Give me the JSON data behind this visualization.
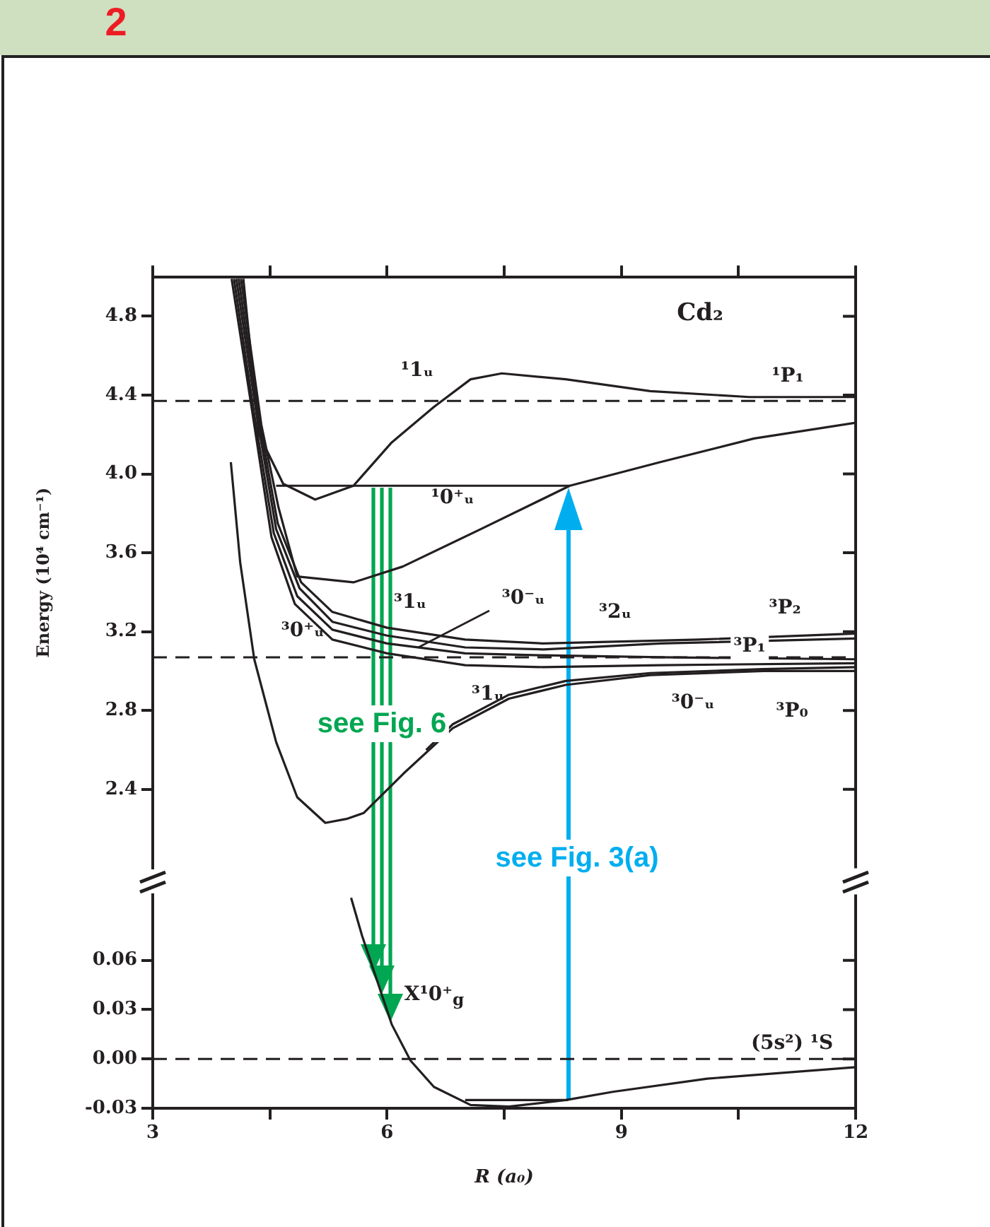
{
  "chart_data": [
    {
      "type": "line",
      "ylabel": "Energy (10⁴ cm⁻¹)",
      "xlim": [
        3,
        12
      ],
      "xticks": [
        {
          "value": 3,
          "label": null
        },
        {
          "value": 4.5,
          "label": null
        },
        {
          "value": 6,
          "label": null
        },
        {
          "value": 7.5,
          "label": null
        },
        {
          "value": 9,
          "label": null
        },
        {
          "value": 10.5,
          "label": null
        },
        {
          "value": 12,
          "label": null
        }
      ],
      "ylim": [
        2.0,
        5.0
      ],
      "yticks": [
        2.4,
        2.8,
        3.2,
        3.6,
        {
          "value": 4,
          "label": "4.0"
        },
        4.4,
        4.8
      ],
      "tick_labels": "y",
      "grid": false,
      "legend": false,
      "marker": "none",
      "line_style": "solid",
      "series": [
        {
          "color": "#231f20",
          "x": [
            4.16,
            4.36,
            4.67,
            5.08,
            5.57,
            6.06,
            6.6,
            7.07,
            7.47,
            8.29,
            9.37,
            10.64,
            12
          ],
          "values": [
            4.99,
            4.2,
            3.95,
            3.87,
            3.94,
            4.16,
            4.34,
            4.48,
            4.51,
            4.48,
            4.42,
            4.39,
            4.39
          ]
        },
        {
          "color": "#231f20",
          "x": [
            4.13,
            4.39,
            4.61,
            4.85,
            5.57,
            6.2,
            7.2,
            8.34,
            9.5,
            10.7,
            12
          ],
          "values": [
            4.99,
            4.25,
            3.83,
            3.48,
            3.45,
            3.53,
            3.72,
            3.94,
            4.06,
            4.18,
            4.26
          ]
        },
        {
          "color": "#231f20",
          "x": [
            4.1,
            4.35,
            4.6,
            4.9,
            5.3,
            6,
            7,
            8.0,
            10,
            12
          ],
          "values": [
            4.99,
            4.3,
            3.75,
            3.45,
            3.3,
            3.22,
            3.16,
            3.14,
            3.16,
            3.19
          ]
        },
        {
          "color": "#231f20",
          "x": [
            4.07,
            4.33,
            4.58,
            4.88,
            5.3,
            6,
            7,
            8,
            9.5,
            12
          ],
          "values": [
            4.99,
            4.3,
            3.72,
            3.42,
            3.25,
            3.18,
            3.12,
            3.11,
            3.14,
            3.165
          ]
        },
        {
          "color": "#231f20",
          "x": [
            4.04,
            4.3,
            4.55,
            4.85,
            5.3,
            6,
            7,
            8,
            9.5,
            12
          ],
          "values": [
            4.99,
            4.3,
            3.7,
            3.38,
            3.21,
            3.14,
            3.09,
            3.08,
            3.07,
            3.06
          ]
        },
        {
          "color": "#231f20",
          "x": [
            4.01,
            4.28,
            4.52,
            4.82,
            5.3,
            6,
            7,
            8,
            9.5,
            12
          ],
          "values": [
            4.99,
            4.3,
            3.68,
            3.34,
            3.16,
            3.09,
            3.03,
            3.02,
            3.03,
            3.04
          ]
        },
        {
          "color": "#231f20",
          "x": [
            4.0,
            4.12,
            4.3,
            4.58,
            4.85,
            5.21,
            5.48,
            5.7,
            6.21,
            6.84,
            7.56,
            8.29,
            9.37,
            10.82,
            12
          ],
          "values": [
            4.06,
            3.55,
            3.06,
            2.64,
            2.36,
            2.23,
            2.25,
            2.28,
            2.48,
            2.71,
            2.86,
            2.93,
            2.98,
            3.0,
            3.0
          ]
        },
        {
          "color": "#231f20",
          "x": [
            6.5,
            6.84,
            7.56,
            8.29,
            9.37,
            10.82,
            12
          ],
          "values": [
            2.6,
            2.73,
            2.88,
            2.95,
            2.99,
            3.01,
            3.02
          ]
        },
        {
          "color": "#231f20",
          "x": [
            4.58,
            8.34
          ],
          "values": [
            3.94,
            3.94
          ]
        }
      ],
      "ref_lines": [
        {
          "axis": "y",
          "value": 4.37,
          "color": "#231f20",
          "line_style": "dashed"
        },
        {
          "axis": "y",
          "value": 3.07,
          "color": "#231f20",
          "line_style": "dashed"
        }
      ],
      "annotations": [
        "2",
        "Cd₂",
        "see Fig. 6",
        "see Fig. 3(a)",
        "¹1ᵤ",
        "¹P₁",
        "¹0⁺ᵤ",
        "³1ᵤ",
        {
          "text": "³0⁻ᵤ",
          "x": 6.4,
          "y": 3.12
        },
        "³0⁺ᵤ",
        "³2ᵤ",
        "³P₂",
        "³P₁",
        "³1ᵤ",
        "³0⁻ᵤ",
        "³P₀"
      ]
    },
    {
      "type": "line",
      "xlabel": "R (a₀)",
      "xlim": [
        3,
        12
      ],
      "xticks": [
        3,
        {
          "value": 4.5,
          "label": null
        },
        6,
        {
          "value": 7.5,
          "label": null
        },
        9,
        {
          "value": 10.5,
          "label": null
        },
        12
      ],
      "ylim": [
        -0.03,
        0.1
      ],
      "yticks": [
        -0.03,
        {
          "value": 0,
          "label": "0.00"
        },
        0.03,
        0.06
      ],
      "grid": false,
      "legend": false,
      "marker": "none",
      "line_style": "solid",
      "series": [
        {
          "color": "#231f20",
          "x": [
            5.54,
            5.68,
            6.06,
            6.3,
            6.6,
            7.07,
            7.56,
            8.29,
            8.89,
            10.1,
            12
          ],
          "values": [
            0.098,
            0.075,
            0.021,
            -0.001,
            -0.017,
            -0.028,
            -0.029,
            -0.025,
            -0.02,
            -0.012,
            -0.005
          ]
        },
        {
          "color": "#231f20",
          "x": [
            7.0,
            8.32
          ],
          "values": [
            -0.025,
            -0.025
          ]
        }
      ],
      "ref_lines": [
        {
          "axis": "y",
          "value": 0,
          "color": "#231f20",
          "line_style": "dashed"
        }
      ],
      "annotations": [
        "X¹0⁺$_{g}$",
        "(5s²) ¹S"
      ]
    }
  ]
}
